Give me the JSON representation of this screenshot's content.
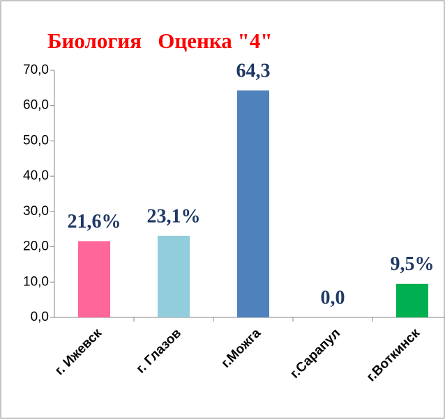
{
  "chart_data": {
    "type": "bar",
    "title": "Биология   Оценка \"4\"",
    "categories": [
      "г. Ижевск",
      "г. Глазов",
      "г.Можга",
      "г.Сарапул",
      "г.Воткинск"
    ],
    "values": [
      21.6,
      23.1,
      64.3,
      0,
      9.5
    ],
    "value_labels": [
      "21,6%",
      "23,1%",
      "64,3",
      "0,0",
      "9,5%"
    ],
    "colors": [
      "#ff6699",
      "#92cddc",
      "#4f81bd",
      "#4f81bd",
      "#00b050"
    ],
    "ylim": [
      0,
      70
    ],
    "yticks": [
      {
        "value": 0,
        "label": "0,0"
      },
      {
        "value": 10,
        "label": "10,0"
      },
      {
        "value": 20,
        "label": "20,0"
      },
      {
        "value": 30,
        "label": "30,0"
      },
      {
        "value": 40,
        "label": "40,0"
      },
      {
        "value": 50,
        "label": "50,0"
      },
      {
        "value": 60,
        "label": "60,0"
      },
      {
        "value": 70,
        "label": "70,0"
      }
    ],
    "grid": false
  }
}
